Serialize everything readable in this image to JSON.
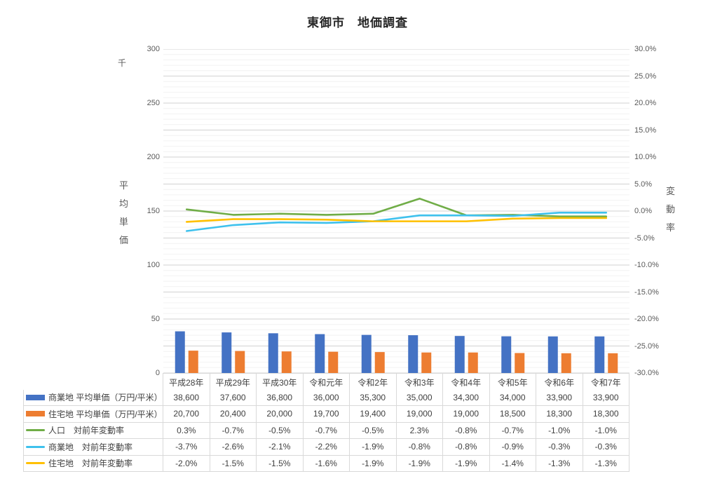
{
  "title": "東御市　地価調査",
  "axes": {
    "left_unit": "千",
    "left_title": "平均単価",
    "right_title": "変動率",
    "left_ticks": [
      "300",
      "250",
      "200",
      "150",
      "100",
      "50",
      "0"
    ],
    "right_ticks": [
      "30.0%",
      "25.0%",
      "20.0%",
      "15.0%",
      "10.0%",
      "5.0%",
      "0.0%",
      "-5.0%",
      "-10.0%",
      "-15.0%",
      "-20.0%",
      "-25.0%",
      "-30.0%"
    ]
  },
  "chart_data": {
    "type": "combo-bar-line",
    "title": "東御市　地価調査",
    "categories": [
      "平成28年",
      "平成29年",
      "平成30年",
      "令和元年",
      "令和2年",
      "令和3年",
      "令和4年",
      "令和5年",
      "令和6年",
      "令和7年"
    ],
    "left_axis": {
      "title": "平均単価",
      "unit": "千",
      "min": 0,
      "max": 300,
      "major_step": 50
    },
    "right_axis": {
      "title": "変動率",
      "min": -30,
      "max": 30,
      "major_step": 5,
      "format": "percent"
    },
    "grid": {
      "horizontal_minor_step_pct": 1,
      "horizontal_major_step_pct": 5,
      "vertical": false
    },
    "legend_position": "table-left",
    "series": [
      {
        "name": "商業地 平均単価（万円/平米）",
        "type": "bar",
        "axis": "left",
        "color": "#4472C4",
        "values": [
          38600,
          37600,
          36800,
          36000,
          35300,
          35000,
          34300,
          34000,
          33900,
          33900
        ],
        "display": [
          "38,600",
          "37,600",
          "36,800",
          "36,000",
          "35,300",
          "35,000",
          "34,300",
          "34,000",
          "33,900",
          "33,900"
        ]
      },
      {
        "name": "住宅地 平均単価（万円/平米）",
        "type": "bar",
        "axis": "left",
        "color": "#ED7D31",
        "values": [
          20700,
          20400,
          20000,
          19700,
          19400,
          19000,
          19000,
          18500,
          18300,
          18300
        ],
        "display": [
          "20,700",
          "20,400",
          "20,000",
          "19,700",
          "19,400",
          "19,000",
          "19,000",
          "18,500",
          "18,300",
          "18,300"
        ]
      },
      {
        "name": "人口　対前年変動率",
        "type": "line",
        "axis": "right",
        "color": "#70AD47",
        "values": [
          0.3,
          -0.7,
          -0.5,
          -0.7,
          -0.5,
          2.3,
          -0.8,
          -0.7,
          -1.0,
          -1.0
        ],
        "display": [
          "0.3%",
          "-0.7%",
          "-0.5%",
          "-0.7%",
          "-0.5%",
          "2.3%",
          "-0.8%",
          "-0.7%",
          "-1.0%",
          "-1.0%"
        ]
      },
      {
        "name": "商業地　対前年変動率",
        "type": "line",
        "axis": "right",
        "color": "#3EC1ED",
        "values": [
          -3.7,
          -2.6,
          -2.1,
          -2.2,
          -1.9,
          -0.8,
          -0.8,
          -0.9,
          -0.3,
          -0.3
        ],
        "display": [
          "-3.7%",
          "-2.6%",
          "-2.1%",
          "-2.2%",
          "-1.9%",
          "-0.8%",
          "-0.8%",
          "-0.9%",
          "-0.3%",
          "-0.3%"
        ]
      },
      {
        "name": "住宅地　対前年変動率",
        "type": "line",
        "axis": "right",
        "color": "#FFC000",
        "values": [
          -2.0,
          -1.5,
          -1.5,
          -1.6,
          -1.9,
          -1.9,
          -1.9,
          -1.4,
          -1.3,
          -1.3
        ],
        "display": [
          "-2.0%",
          "-1.5%",
          "-1.5%",
          "-1.6%",
          "-1.9%",
          "-1.9%",
          "-1.9%",
          "-1.4%",
          "-1.3%",
          "-1.3%"
        ]
      }
    ]
  },
  "colors": {
    "grid_major": "#D9D9D9",
    "grid_minor": "#F2F2F2",
    "table_border": "#D9D9D9",
    "tick_text": "#595959",
    "table_text": "#404040"
  }
}
